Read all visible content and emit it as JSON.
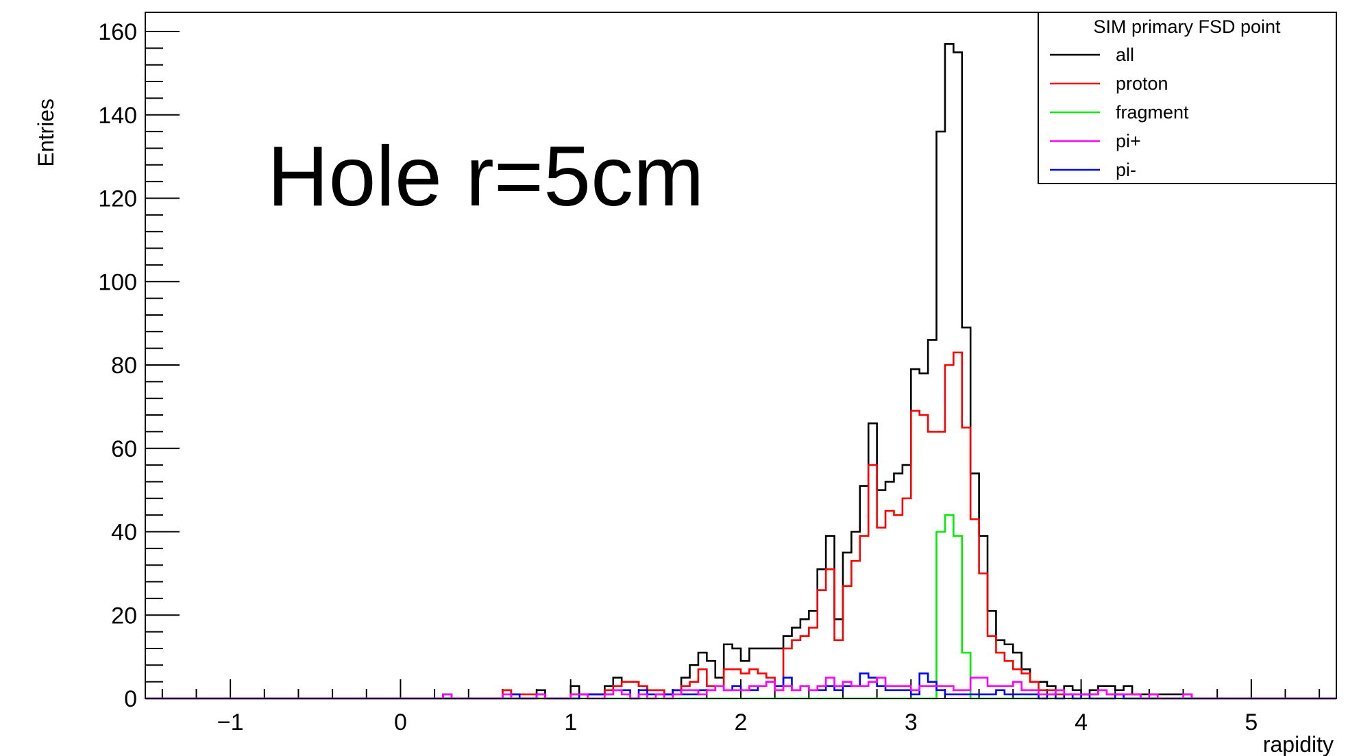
{
  "chart_data": {
    "type": "histogram",
    "xlabel": "rapidity",
    "ylabel": "Entries",
    "xlim": [
      -1.5,
      5.5
    ],
    "ylim": [
      0,
      160
    ],
    "x_ticks": [
      -1,
      0,
      1,
      2,
      3,
      4,
      5
    ],
    "y_ticks": [
      0,
      20,
      40,
      60,
      80,
      100,
      120,
      140,
      160
    ],
    "x_tick_labels": [
      "−1",
      "0",
      "1",
      "2",
      "3",
      "4",
      "5"
    ],
    "y_tick_labels": [
      "0",
      "20",
      "40",
      "60",
      "80",
      "100",
      "120",
      "140",
      "160"
    ],
    "bin_width": 0.05,
    "annotation": "Hole r=5cm",
    "legend": {
      "title": "SIM primary FSD point",
      "placement": "top-right"
    },
    "series": [
      {
        "name": "all",
        "color": "#000000",
        "bins": [
          [
            0.25,
            1
          ],
          [
            0.6,
            2
          ],
          [
            0.8,
            2
          ],
          [
            1.0,
            3
          ],
          [
            1.05,
            1
          ],
          [
            1.1,
            1
          ],
          [
            1.15,
            1
          ],
          [
            1.2,
            3
          ],
          [
            1.25,
            5
          ],
          [
            1.3,
            4
          ],
          [
            1.35,
            4
          ],
          [
            1.4,
            3
          ],
          [
            1.45,
            2
          ],
          [
            1.5,
            2
          ],
          [
            1.55,
            1
          ],
          [
            1.6,
            2
          ],
          [
            1.65,
            5
          ],
          [
            1.7,
            8
          ],
          [
            1.75,
            11
          ],
          [
            1.8,
            9
          ],
          [
            1.85,
            5
          ],
          [
            1.9,
            13
          ],
          [
            1.95,
            12
          ],
          [
            2.0,
            9
          ],
          [
            2.05,
            12
          ],
          [
            2.1,
            12
          ],
          [
            2.15,
            12
          ],
          [
            2.2,
            12
          ],
          [
            2.25,
            15
          ],
          [
            2.3,
            17
          ],
          [
            2.35,
            19
          ],
          [
            2.4,
            21
          ],
          [
            2.45,
            31
          ],
          [
            2.5,
            39
          ],
          [
            2.55,
            19
          ],
          [
            2.6,
            35
          ],
          [
            2.65,
            40
          ],
          [
            2.7,
            51
          ],
          [
            2.75,
            66
          ],
          [
            2.8,
            50
          ],
          [
            2.85,
            52
          ],
          [
            2.9,
            54
          ],
          [
            2.95,
            56
          ],
          [
            3.0,
            79
          ],
          [
            3.05,
            78
          ],
          [
            3.1,
            86
          ],
          [
            3.15,
            136
          ],
          [
            3.2,
            157
          ],
          [
            3.25,
            155
          ],
          [
            3.3,
            89
          ],
          [
            3.35,
            54
          ],
          [
            3.4,
            39
          ],
          [
            3.45,
            21
          ],
          [
            3.5,
            14
          ],
          [
            3.55,
            13
          ],
          [
            3.6,
            11
          ],
          [
            3.65,
            7
          ],
          [
            3.7,
            4
          ],
          [
            3.75,
            4
          ],
          [
            3.8,
            3
          ],
          [
            3.85,
            2
          ],
          [
            3.9,
            3
          ],
          [
            3.95,
            2
          ],
          [
            4.0,
            1
          ],
          [
            4.05,
            2
          ],
          [
            4.1,
            3
          ],
          [
            4.15,
            3
          ],
          [
            4.2,
            2
          ],
          [
            4.25,
            3
          ],
          [
            4.3,
            1
          ],
          [
            4.35,
            1
          ],
          [
            4.4,
            1
          ],
          [
            4.45,
            1
          ],
          [
            4.5,
            1
          ],
          [
            4.55,
            1
          ],
          [
            4.6,
            1
          ]
        ]
      },
      {
        "name": "proton",
        "color": "#ff0000",
        "bins": [
          [
            0.6,
            2
          ],
          [
            0.65,
            1
          ],
          [
            0.7,
            1
          ],
          [
            0.75,
            1
          ],
          [
            1.0,
            1
          ],
          [
            1.05,
            1
          ],
          [
            1.1,
            1
          ],
          [
            1.15,
            1
          ],
          [
            1.2,
            2
          ],
          [
            1.25,
            3
          ],
          [
            1.3,
            4
          ],
          [
            1.35,
            4
          ],
          [
            1.4,
            3
          ],
          [
            1.45,
            2
          ],
          [
            1.5,
            2
          ],
          [
            1.55,
            1
          ],
          [
            1.6,
            2
          ],
          [
            1.65,
            3
          ],
          [
            1.7,
            4
          ],
          [
            1.75,
            7
          ],
          [
            1.8,
            3
          ],
          [
            1.85,
            3
          ],
          [
            1.9,
            7
          ],
          [
            1.95,
            7
          ],
          [
            2.0,
            6
          ],
          [
            2.05,
            7
          ],
          [
            2.1,
            6
          ],
          [
            2.15,
            5
          ],
          [
            2.2,
            2
          ],
          [
            2.25,
            12
          ],
          [
            2.3,
            14
          ],
          [
            2.35,
            15
          ],
          [
            2.4,
            17
          ],
          [
            2.45,
            26
          ],
          [
            2.5,
            31
          ],
          [
            2.55,
            14
          ],
          [
            2.6,
            27
          ],
          [
            2.65,
            33
          ],
          [
            2.7,
            39
          ],
          [
            2.75,
            56
          ],
          [
            2.8,
            41
          ],
          [
            2.85,
            45
          ],
          [
            2.9,
            44
          ],
          [
            2.95,
            48
          ],
          [
            3.0,
            69
          ],
          [
            3.05,
            68
          ],
          [
            3.1,
            64
          ],
          [
            3.15,
            64
          ],
          [
            3.2,
            80
          ],
          [
            3.25,
            83
          ],
          [
            3.3,
            65
          ],
          [
            3.35,
            43
          ],
          [
            3.4,
            30
          ],
          [
            3.45,
            15
          ],
          [
            3.5,
            11
          ],
          [
            3.55,
            9
          ],
          [
            3.6,
            7
          ],
          [
            3.65,
            6
          ],
          [
            3.7,
            4
          ],
          [
            3.75,
            2
          ],
          [
            3.8,
            2
          ],
          [
            3.85,
            1
          ],
          [
            3.9,
            1
          ],
          [
            3.95,
            1
          ],
          [
            4.0,
            1
          ],
          [
            4.05,
            1
          ],
          [
            4.1,
            2
          ],
          [
            4.15,
            1
          ],
          [
            4.2,
            1
          ],
          [
            4.25,
            1
          ],
          [
            4.3,
            1
          ]
        ]
      },
      {
        "name": "fragment",
        "color": "#00ee00",
        "bins": [
          [
            3.15,
            40
          ],
          [
            3.2,
            44
          ],
          [
            3.25,
            39
          ],
          [
            3.3,
            11
          ]
        ]
      },
      {
        "name": "pi+",
        "color": "#ff00ff",
        "bins": [
          [
            0.25,
            1
          ],
          [
            0.6,
            1
          ],
          [
            0.8,
            1
          ],
          [
            1.0,
            1
          ],
          [
            1.05,
            1
          ],
          [
            1.2,
            1
          ],
          [
            1.25,
            2
          ],
          [
            1.3,
            1
          ],
          [
            1.4,
            1
          ],
          [
            1.5,
            1
          ],
          [
            1.6,
            1
          ],
          [
            1.65,
            2
          ],
          [
            1.7,
            2
          ],
          [
            1.75,
            1
          ],
          [
            1.8,
            2
          ],
          [
            1.85,
            3
          ],
          [
            1.9,
            2
          ],
          [
            1.95,
            2
          ],
          [
            2.0,
            2
          ],
          [
            2.05,
            3
          ],
          [
            2.1,
            3
          ],
          [
            2.15,
            4
          ],
          [
            2.2,
            2
          ],
          [
            2.25,
            3
          ],
          [
            2.3,
            2
          ],
          [
            2.35,
            3
          ],
          [
            2.4,
            2
          ],
          [
            2.45,
            3
          ],
          [
            2.5,
            5
          ],
          [
            2.55,
            3
          ],
          [
            2.6,
            4
          ],
          [
            2.65,
            3
          ],
          [
            2.7,
            3
          ],
          [
            2.75,
            4
          ],
          [
            2.8,
            5
          ],
          [
            2.85,
            3
          ],
          [
            2.9,
            3
          ],
          [
            2.95,
            3
          ],
          [
            3.0,
            2
          ],
          [
            3.05,
            3
          ],
          [
            3.1,
            3
          ],
          [
            3.15,
            3
          ],
          [
            3.2,
            3
          ],
          [
            3.25,
            2
          ],
          [
            3.3,
            2
          ],
          [
            3.35,
            5
          ],
          [
            3.4,
            5
          ],
          [
            3.45,
            3
          ],
          [
            3.5,
            3
          ],
          [
            3.55,
            3
          ],
          [
            3.6,
            4
          ],
          [
            3.65,
            2
          ],
          [
            3.7,
            2
          ],
          [
            3.75,
            1
          ],
          [
            3.8,
            1
          ],
          [
            3.85,
            2
          ],
          [
            3.9,
            1
          ],
          [
            3.95,
            1
          ],
          [
            4.0,
            1
          ],
          [
            4.05,
            1
          ],
          [
            4.1,
            2
          ],
          [
            4.15,
            1
          ],
          [
            4.2,
            1
          ],
          [
            4.25,
            1
          ],
          [
            4.3,
            1
          ],
          [
            4.4,
            1
          ],
          [
            4.6,
            1
          ]
        ]
      },
      {
        "name": "pi-",
        "color": "#0000ff",
        "bins": [
          [
            0.65,
            1
          ],
          [
            0.8,
            1
          ],
          [
            1.05,
            1
          ],
          [
            1.1,
            1
          ],
          [
            1.15,
            1
          ],
          [
            1.2,
            1
          ],
          [
            1.25,
            2
          ],
          [
            1.3,
            2
          ],
          [
            1.4,
            2
          ],
          [
            1.45,
            1
          ],
          [
            1.5,
            1
          ],
          [
            1.55,
            1
          ],
          [
            1.6,
            2
          ],
          [
            1.65,
            1
          ],
          [
            1.7,
            1
          ],
          [
            1.75,
            2
          ],
          [
            1.8,
            2
          ],
          [
            1.85,
            3
          ],
          [
            1.9,
            2
          ],
          [
            1.95,
            3
          ],
          [
            2.0,
            2
          ],
          [
            2.05,
            2
          ],
          [
            2.1,
            3
          ],
          [
            2.15,
            4
          ],
          [
            2.2,
            3
          ],
          [
            2.25,
            5
          ],
          [
            2.3,
            2
          ],
          [
            2.35,
            3
          ],
          [
            2.4,
            2
          ],
          [
            2.45,
            2
          ],
          [
            2.5,
            3
          ],
          [
            2.55,
            2
          ],
          [
            2.6,
            3
          ],
          [
            2.65,
            3
          ],
          [
            2.7,
            6
          ],
          [
            2.75,
            5
          ],
          [
            2.8,
            3
          ],
          [
            2.85,
            2
          ],
          [
            2.9,
            2
          ],
          [
            2.95,
            2
          ],
          [
            3.0,
            1
          ],
          [
            3.05,
            6
          ],
          [
            3.1,
            4
          ],
          [
            3.15,
            2
          ],
          [
            3.2,
            1
          ],
          [
            3.25,
            1
          ],
          [
            3.3,
            1
          ],
          [
            3.35,
            1
          ],
          [
            3.4,
            1
          ],
          [
            3.45,
            1
          ],
          [
            3.5,
            2
          ],
          [
            3.55,
            1
          ],
          [
            3.6,
            1
          ],
          [
            3.65,
            1
          ],
          [
            3.7,
            1
          ],
          [
            3.8,
            1
          ],
          [
            3.9,
            1
          ],
          [
            4.0,
            1
          ],
          [
            4.2,
            1
          ]
        ]
      }
    ]
  }
}
